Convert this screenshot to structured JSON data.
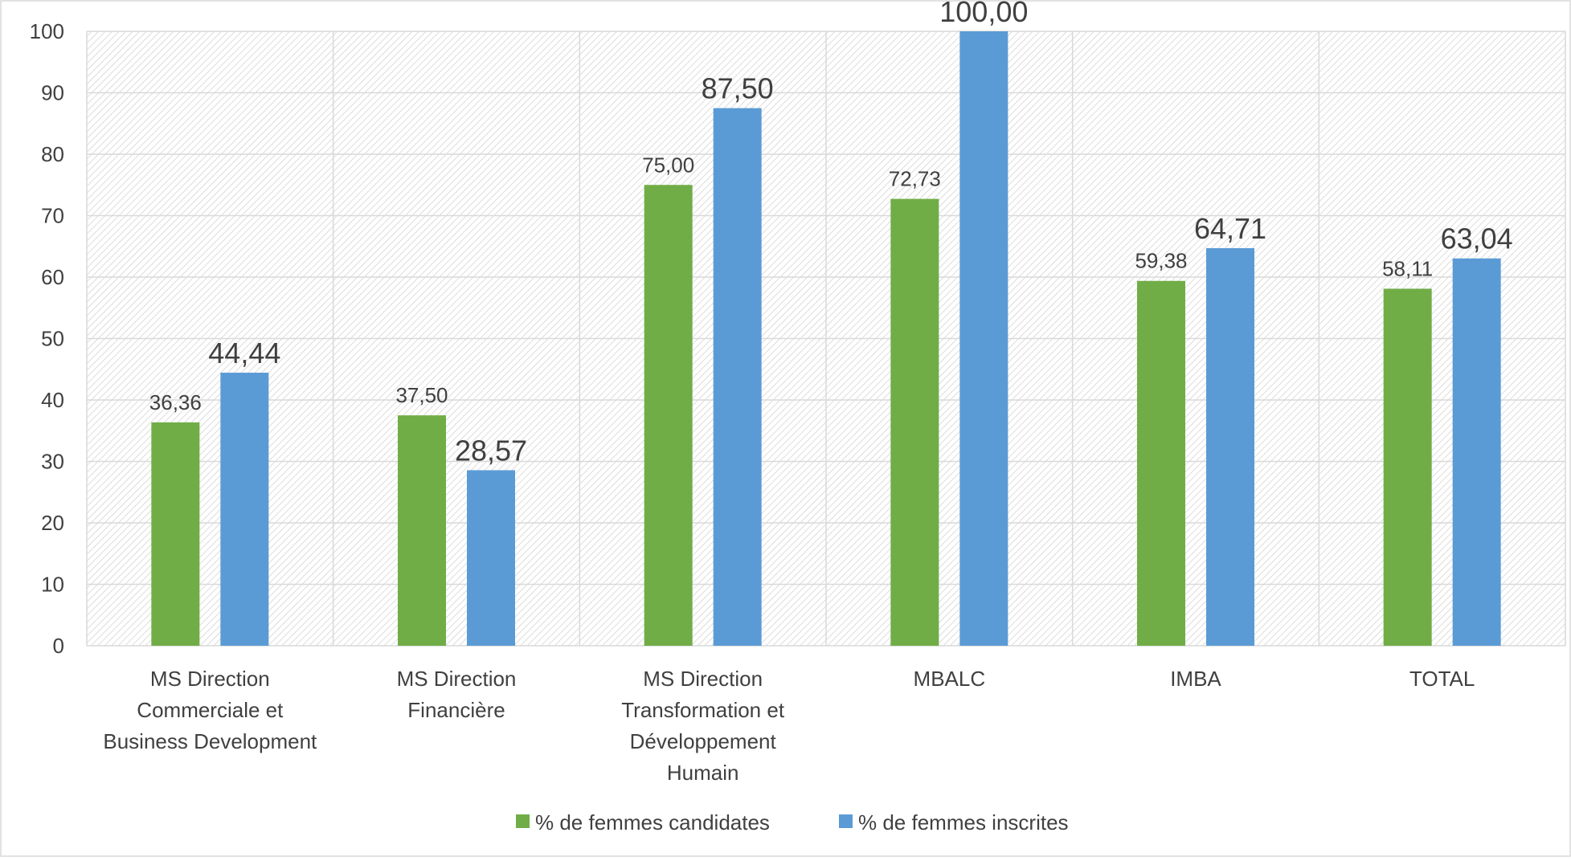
{
  "chart_data": {
    "type": "bar",
    "title": "",
    "xlabel": "",
    "ylabel": "",
    "ylim": [
      0,
      100
    ],
    "yticks": [
      0,
      10,
      20,
      30,
      40,
      50,
      60,
      70,
      80,
      90,
      100
    ],
    "grid": true,
    "legend_position": "bottom",
    "categories": [
      [
        "MS Direction",
        "Commerciale et",
        "Business Development"
      ],
      [
        "MS Direction",
        "Financière"
      ],
      [
        "MS Direction",
        "Transformation et",
        "Développement",
        "Humain"
      ],
      [
        "MBALC"
      ],
      [
        "IMBA"
      ],
      [
        "TOTAL"
      ]
    ],
    "series": [
      {
        "name": "% de femmes candidates",
        "color": "#70AD47",
        "values": [
          36.36,
          37.5,
          75.0,
          72.73,
          59.38,
          58.11
        ],
        "labels": [
          "36,36",
          "37,50",
          "75,00",
          "72,73",
          "59,38",
          "58,11"
        ]
      },
      {
        "name": "% de femmes inscrites",
        "color": "#5B9BD5",
        "values": [
          44.44,
          28.57,
          87.5,
          100.0,
          64.71,
          63.04
        ],
        "labels": [
          "44,44",
          "28,57",
          "87,50",
          "100,00",
          "64,71",
          "63,04"
        ]
      }
    ]
  }
}
